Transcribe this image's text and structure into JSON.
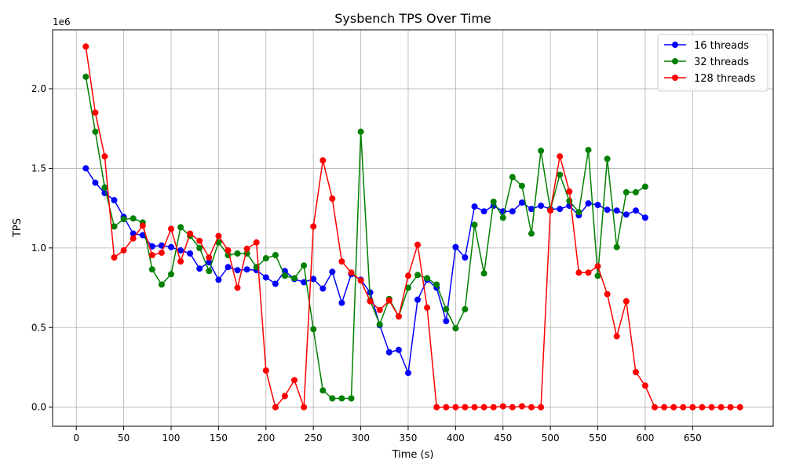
{
  "chart_data": {
    "type": "line",
    "title": "Sysbench TPS Over Time",
    "xlabel": "Time (s)",
    "ylabel": "TPS",
    "y_offset_label": "1e6",
    "xlim": [
      -25,
      735
    ],
    "ylim": [
      -120000,
      2370000
    ],
    "x_ticks": [
      0,
      50,
      100,
      150,
      200,
      250,
      300,
      350,
      400,
      450,
      500,
      550,
      600,
      650
    ],
    "x_tick_labels": [
      "0",
      "50",
      "100",
      "150",
      "200",
      "250",
      "300",
      "350",
      "400",
      "450",
      "500",
      "550",
      "600",
      "650"
    ],
    "y_ticks": [
      0,
      500000,
      1000000,
      1500000,
      2000000
    ],
    "y_tick_labels": [
      "0.0",
      "0.5",
      "1.0",
      "1.5",
      "2.0"
    ],
    "grid": true,
    "legend_position": "top-right",
    "series": [
      {
        "name": "16 threads",
        "color": "#0000ff",
        "x": [
          10,
          20,
          30,
          40,
          50,
          60,
          70,
          80,
          90,
          100,
          110,
          120,
          130,
          140,
          150,
          160,
          170,
          180,
          190,
          200,
          210,
          220,
          230,
          240,
          250,
          260,
          270,
          280,
          290,
          300,
          310,
          320,
          330,
          340,
          350,
          360,
          370,
          380,
          390,
          400,
          410,
          420,
          430,
          440,
          450,
          460,
          470,
          480,
          490,
          500,
          510,
          520,
          530,
          540,
          550,
          560,
          570,
          580,
          590,
          600
        ],
        "values": [
          1500000,
          1410000,
          1345000,
          1300000,
          1195000,
          1090000,
          1080000,
          1010000,
          1015000,
          1005000,
          985000,
          965000,
          870000,
          910000,
          800000,
          880000,
          860000,
          865000,
          860000,
          815000,
          775000,
          855000,
          805000,
          785000,
          805000,
          745000,
          850000,
          655000,
          835000,
          800000,
          720000,
          515000,
          345000,
          360000,
          215000,
          675000,
          800000,
          750000,
          540000,
          1005000,
          940000,
          1260000,
          1230000,
          1265000,
          1230000,
          1230000,
          1285000,
          1245000,
          1265000,
          1245000,
          1245000,
          1265000,
          1205000,
          1280000,
          1270000,
          1240000,
          1235000,
          1210000,
          1235000,
          1190000
        ]
      },
      {
        "name": "32 threads",
        "color": "#008000",
        "x": [
          10,
          20,
          30,
          40,
          50,
          60,
          70,
          80,
          90,
          100,
          110,
          120,
          130,
          140,
          150,
          160,
          170,
          180,
          190,
          200,
          210,
          220,
          230,
          240,
          250,
          260,
          270,
          280,
          290,
          300,
          310,
          320,
          330,
          340,
          350,
          360,
          370,
          380,
          390,
          400,
          410,
          420,
          430,
          440,
          450,
          460,
          470,
          480,
          490,
          500,
          510,
          520,
          530,
          540,
          550,
          560,
          570,
          580,
          590,
          600
        ],
        "values": [
          2075000,
          1730000,
          1380000,
          1135000,
          1180000,
          1185000,
          1160000,
          865000,
          770000,
          835000,
          1130000,
          1075000,
          1000000,
          855000,
          1035000,
          955000,
          965000,
          965000,
          880000,
          935000,
          955000,
          825000,
          810000,
          890000,
          490000,
          105000,
          55000,
          55000,
          55000,
          1730000,
          670000,
          520000,
          680000,
          570000,
          750000,
          830000,
          810000,
          770000,
          615000,
          495000,
          615000,
          1145000,
          840000,
          1290000,
          1190000,
          1445000,
          1390000,
          1090000,
          1610000,
          1240000,
          1460000,
          1295000,
          1225000,
          1615000,
          825000,
          1560000,
          1005000,
          1350000,
          1350000,
          1385000
        ]
      },
      {
        "name": "128 threads",
        "color": "#ff0000",
        "x": [
          10,
          20,
          30,
          40,
          50,
          60,
          70,
          80,
          90,
          100,
          110,
          120,
          130,
          140,
          150,
          160,
          170,
          180,
          190,
          200,
          210,
          220,
          230,
          240,
          250,
          260,
          270,
          280,
          290,
          300,
          310,
          320,
          330,
          340,
          350,
          360,
          370,
          380,
          390,
          400,
          410,
          420,
          430,
          440,
          450,
          460,
          470,
          480,
          490,
          500,
          510,
          520,
          530,
          540,
          550,
          560,
          570,
          580,
          590,
          600,
          610,
          620,
          630,
          640,
          650,
          660,
          670,
          680,
          690,
          700
        ],
        "values": [
          2265000,
          1850000,
          1575000,
          940000,
          985000,
          1060000,
          1140000,
          955000,
          970000,
          1120000,
          915000,
          1090000,
          1045000,
          940000,
          1075000,
          985000,
          750000,
          995000,
          1035000,
          230000,
          0,
          70000,
          170000,
          0,
          1135000,
          1550000,
          1310000,
          915000,
          845000,
          795000,
          665000,
          610000,
          670000,
          570000,
          825000,
          1020000,
          625000,
          0,
          0,
          0,
          0,
          0,
          0,
          0,
          5000,
          0,
          5000,
          0,
          0,
          1235000,
          1575000,
          1355000,
          845000,
          845000,
          885000,
          710000,
          445000,
          665000,
          220000,
          135000,
          0,
          0,
          0,
          0,
          0,
          0,
          0,
          0,
          0,
          0
        ]
      }
    ]
  }
}
